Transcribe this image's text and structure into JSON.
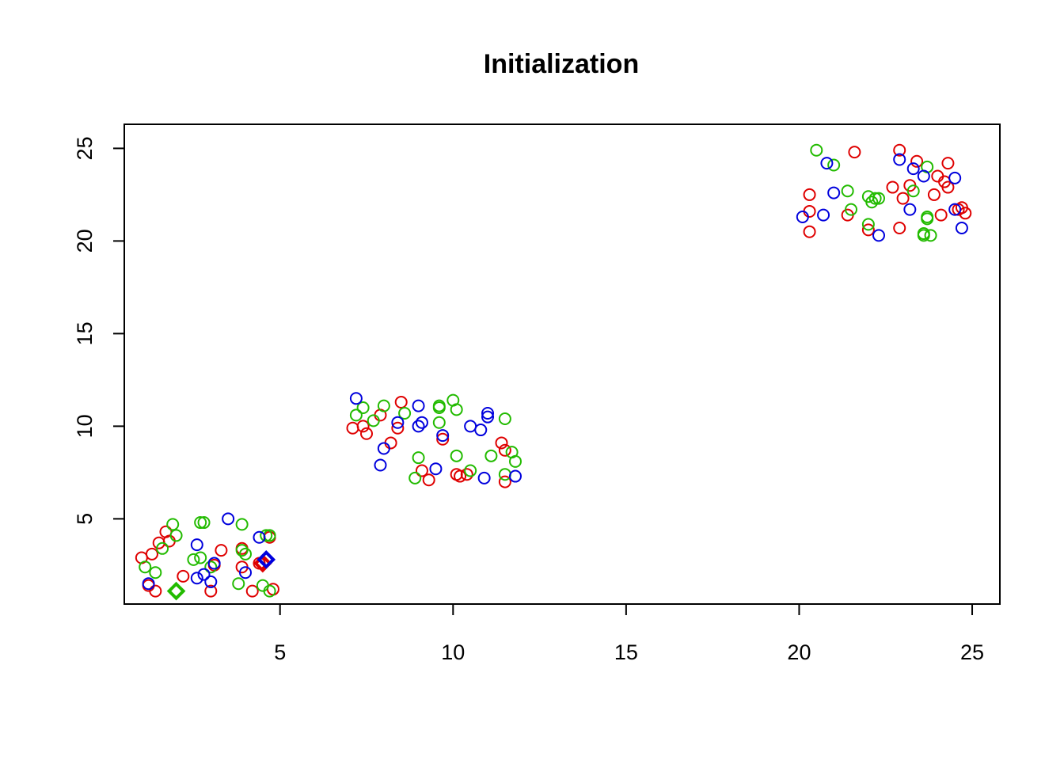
{
  "chart_data": {
    "type": "scatter",
    "title": "Initialization",
    "xlabel": "",
    "ylabel": "",
    "xlim": [
      0.5,
      25.8
    ],
    "ylim": [
      0.4,
      26.3
    ],
    "x_ticks": [
      5,
      10,
      15,
      20,
      25
    ],
    "y_ticks": [
      5,
      10,
      15,
      20,
      25
    ],
    "x_tick_labels": [
      "5",
      "10",
      "15",
      "20",
      "25"
    ],
    "y_tick_labels": [
      "5",
      "10",
      "15",
      "20",
      "25"
    ],
    "grid": false,
    "legend": "none",
    "colors": {
      "red": "#DF0000",
      "green": "#22BB00",
      "blue": "#0000DD"
    },
    "series": [
      {
        "color": "red",
        "marker": "circle",
        "points": [
          [
            1.0,
            2.9
          ],
          [
            1.3,
            3.1
          ],
          [
            1.5,
            3.7
          ],
          [
            1.7,
            4.3
          ],
          [
            1.8,
            3.8
          ],
          [
            1.2,
            1.4
          ],
          [
            1.4,
            1.1
          ],
          [
            2.2,
            1.9
          ],
          [
            3.0,
            1.1
          ],
          [
            3.1,
            2.5
          ],
          [
            3.3,
            3.3
          ],
          [
            3.9,
            3.4
          ],
          [
            3.9,
            2.4
          ],
          [
            4.2,
            1.1
          ],
          [
            4.4,
            2.6
          ],
          [
            4.7,
            4.0
          ],
          [
            4.8,
            1.2
          ],
          [
            7.1,
            9.9
          ],
          [
            7.4,
            10.0
          ],
          [
            7.5,
            9.6
          ],
          [
            7.9,
            10.6
          ],
          [
            8.2,
            9.1
          ],
          [
            8.4,
            9.9
          ],
          [
            8.5,
            11.3
          ],
          [
            9.1,
            7.6
          ],
          [
            9.3,
            7.1
          ],
          [
            9.7,
            9.3
          ],
          [
            10.1,
            7.4
          ],
          [
            10.2,
            7.3
          ],
          [
            10.4,
            7.4
          ],
          [
            11.4,
            9.1
          ],
          [
            11.5,
            8.7
          ],
          [
            11.5,
            7.0
          ],
          [
            20.3,
            22.5
          ],
          [
            20.3,
            21.6
          ],
          [
            20.3,
            20.5
          ],
          [
            21.4,
            21.4
          ],
          [
            21.6,
            24.8
          ],
          [
            22.0,
            20.6
          ],
          [
            22.7,
            22.9
          ],
          [
            22.9,
            24.9
          ],
          [
            22.9,
            20.7
          ],
          [
            23.0,
            22.3
          ],
          [
            23.2,
            23.0
          ],
          [
            23.4,
            24.3
          ],
          [
            23.9,
            22.5
          ],
          [
            24.0,
            23.5
          ],
          [
            24.1,
            21.4
          ],
          [
            24.2,
            23.2
          ],
          [
            24.3,
            22.9
          ],
          [
            24.3,
            24.2
          ],
          [
            24.6,
            21.7
          ],
          [
            24.7,
            21.8
          ],
          [
            24.8,
            21.5
          ]
        ]
      },
      {
        "color": "green",
        "marker": "circle",
        "points": [
          [
            1.1,
            2.4
          ],
          [
            1.4,
            2.1
          ],
          [
            1.6,
            3.4
          ],
          [
            1.9,
            4.7
          ],
          [
            2.0,
            4.1
          ],
          [
            2.5,
            2.8
          ],
          [
            2.7,
            2.9
          ],
          [
            2.7,
            4.8
          ],
          [
            2.8,
            4.8
          ],
          [
            3.0,
            2.4
          ],
          [
            3.8,
            1.5
          ],
          [
            3.9,
            4.7
          ],
          [
            3.9,
            3.3
          ],
          [
            4.0,
            3.1
          ],
          [
            4.5,
            1.4
          ],
          [
            4.6,
            4.1
          ],
          [
            4.7,
            4.1
          ],
          [
            4.7,
            1.1
          ],
          [
            7.2,
            10.6
          ],
          [
            7.4,
            11.0
          ],
          [
            7.7,
            10.3
          ],
          [
            8.0,
            11.1
          ],
          [
            8.6,
            10.7
          ],
          [
            8.9,
            7.2
          ],
          [
            9.0,
            8.3
          ],
          [
            9.6,
            11.0
          ],
          [
            9.6,
            11.1
          ],
          [
            9.6,
            10.2
          ],
          [
            10.0,
            11.4
          ],
          [
            10.1,
            10.9
          ],
          [
            10.1,
            8.4
          ],
          [
            10.5,
            7.6
          ],
          [
            11.1,
            8.4
          ],
          [
            11.5,
            10.4
          ],
          [
            11.5,
            7.4
          ],
          [
            11.7,
            8.6
          ],
          [
            11.8,
            8.1
          ],
          [
            20.5,
            24.9
          ],
          [
            21.0,
            24.1
          ],
          [
            21.4,
            22.7
          ],
          [
            21.5,
            21.7
          ],
          [
            22.0,
            22.4
          ],
          [
            22.0,
            20.9
          ],
          [
            22.1,
            22.1
          ],
          [
            22.2,
            22.3
          ],
          [
            22.3,
            22.3
          ],
          [
            23.3,
            22.7
          ],
          [
            23.6,
            20.4
          ],
          [
            23.6,
            20.3
          ],
          [
            23.7,
            24.0
          ],
          [
            23.7,
            21.2
          ],
          [
            23.7,
            21.3
          ],
          [
            23.8,
            20.3
          ]
        ]
      },
      {
        "color": "blue",
        "marker": "circle",
        "points": [
          [
            1.2,
            1.5
          ],
          [
            2.6,
            3.6
          ],
          [
            2.6,
            1.8
          ],
          [
            2.8,
            2.0
          ],
          [
            3.0,
            1.6
          ],
          [
            3.1,
            2.6
          ],
          [
            3.5,
            5.0
          ],
          [
            4.0,
            2.1
          ],
          [
            4.4,
            4.0
          ],
          [
            7.2,
            11.5
          ],
          [
            7.9,
            7.9
          ],
          [
            8.0,
            8.8
          ],
          [
            8.4,
            10.2
          ],
          [
            9.0,
            11.1
          ],
          [
            9.0,
            10.0
          ],
          [
            9.1,
            10.2
          ],
          [
            9.5,
            7.7
          ],
          [
            9.7,
            9.5
          ],
          [
            10.5,
            10.0
          ],
          [
            10.8,
            9.8
          ],
          [
            10.9,
            7.2
          ],
          [
            11.0,
            10.7
          ],
          [
            11.0,
            10.5
          ],
          [
            11.8,
            7.3
          ],
          [
            20.1,
            21.3
          ],
          [
            20.7,
            21.4
          ],
          [
            20.8,
            24.2
          ],
          [
            21.0,
            22.6
          ],
          [
            22.3,
            20.3
          ],
          [
            22.9,
            24.4
          ],
          [
            23.2,
            21.7
          ],
          [
            23.3,
            23.9
          ],
          [
            23.6,
            23.5
          ],
          [
            24.5,
            23.4
          ],
          [
            24.5,
            21.7
          ],
          [
            24.7,
            20.7
          ]
        ]
      }
    ],
    "centroids": [
      {
        "color": "red",
        "marker": "diamond",
        "x": 4.5,
        "y": 2.6
      },
      {
        "color": "blue",
        "marker": "diamond",
        "x": 4.6,
        "y": 2.8
      },
      {
        "color": "green",
        "marker": "diamond",
        "x": 2.0,
        "y": 1.1
      }
    ]
  }
}
